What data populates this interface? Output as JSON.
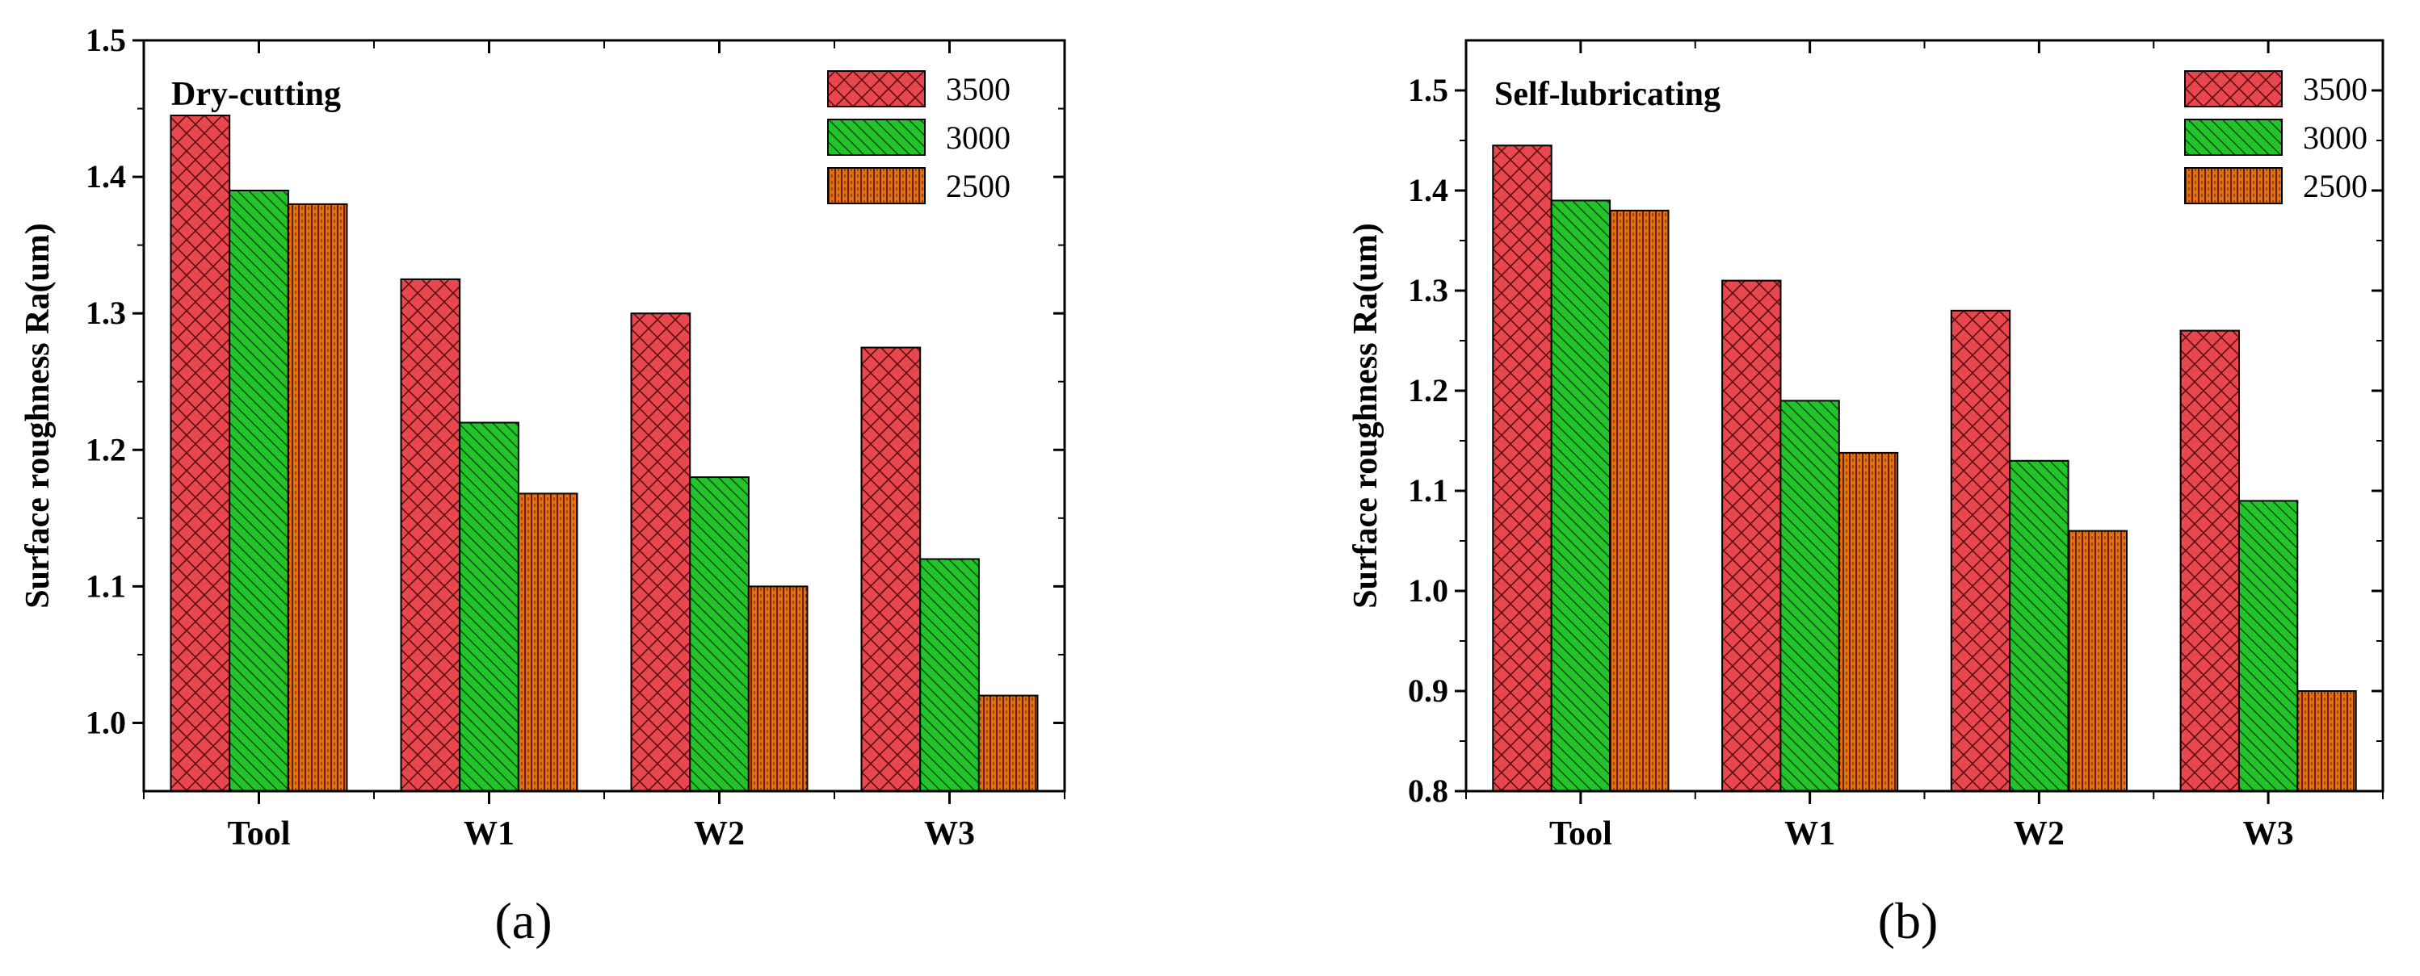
{
  "colors": {
    "3500": "#e8474d",
    "3000": "#22c42a",
    "2500": "#e86e0c"
  },
  "chart_data": [
    {
      "type": "bar",
      "panel_label": "(a)",
      "title": "Dry-cutting",
      "xlabel": "",
      "ylabel": "Surface roughness Ra(um)",
      "categories": [
        "Tool",
        "W1",
        "W2",
        "W3"
      ],
      "ylim": [
        0.95,
        1.5
      ],
      "yticks": [
        "1.0",
        "1.1",
        "1.2",
        "1.3",
        "1.4",
        "1.5"
      ],
      "legend_position": "top-right",
      "series": [
        {
          "name": "3500",
          "values": [
            1.445,
            1.325,
            1.3,
            1.275
          ]
        },
        {
          "name": "3000",
          "values": [
            1.39,
            1.22,
            1.18,
            1.12
          ]
        },
        {
          "name": "2500",
          "values": [
            1.38,
            1.168,
            1.1,
            1.02
          ]
        }
      ]
    },
    {
      "type": "bar",
      "panel_label": "(b)",
      "title": "Self-lubricating",
      "xlabel": "",
      "ylabel": "Surface roughness Ra(um)",
      "categories": [
        "Tool",
        "W1",
        "W2",
        "W3"
      ],
      "ylim": [
        0.8,
        1.55
      ],
      "yticks": [
        "0.8",
        "0.9",
        "1.0",
        "1.1",
        "1.2",
        "1.3",
        "1.4",
        "1.5"
      ],
      "legend_position": "top-right",
      "series": [
        {
          "name": "3500",
          "values": [
            1.445,
            1.31,
            1.28,
            1.26
          ]
        },
        {
          "name": "3000",
          "values": [
            1.39,
            1.19,
            1.13,
            1.09
          ]
        },
        {
          "name": "2500",
          "values": [
            1.38,
            1.138,
            1.06,
            0.9
          ]
        }
      ]
    }
  ]
}
